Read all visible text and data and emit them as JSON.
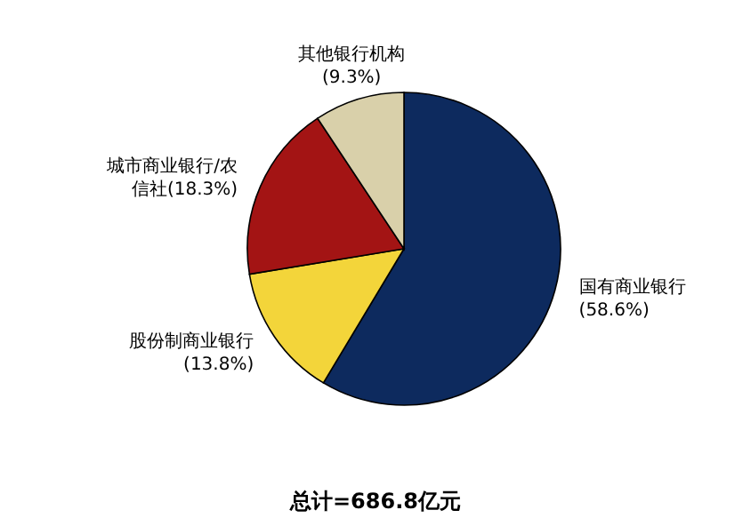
{
  "chart_data": {
    "type": "pie",
    "categories": [
      "国有商业银行",
      "股份制商业银行",
      "城市商业银行/农信社",
      "其他银行机构"
    ],
    "values": [
      58.6,
      13.8,
      18.3,
      9.3
    ],
    "value_labels": [
      "(58.6%)",
      "(13.8%)",
      "(18.3%)",
      "(9.3%)"
    ],
    "colors": [
      "#0d2a5e",
      "#f3d53a",
      "#a31414",
      "#d9d0aa"
    ],
    "annotations": [
      "总计=686.8亿元"
    ],
    "legend": false
  }
}
